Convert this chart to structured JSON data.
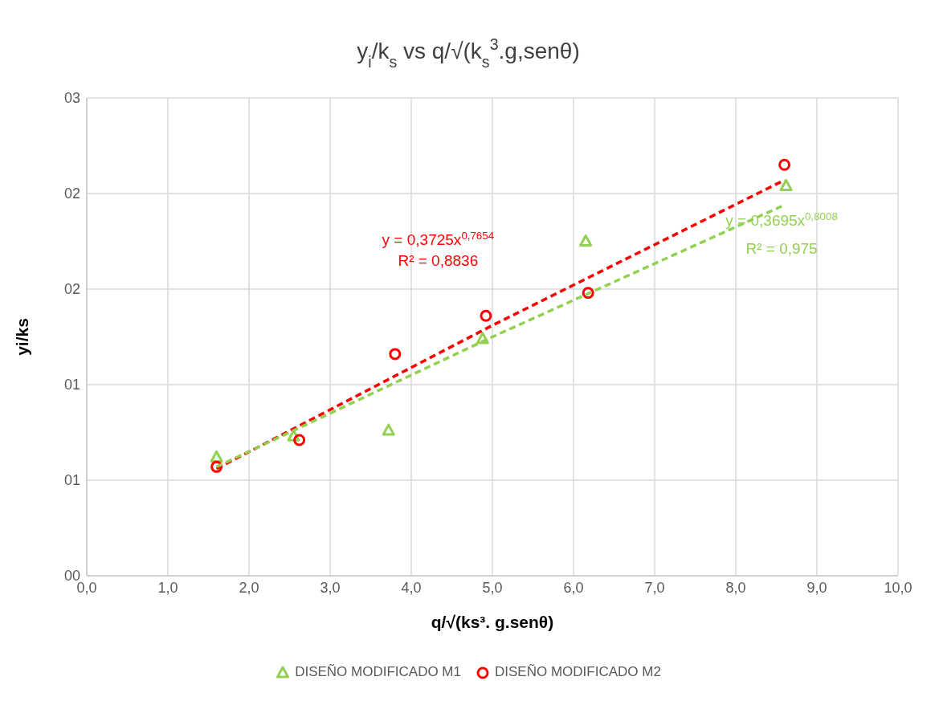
{
  "chart_data": {
    "type": "scatter",
    "title": "y$_{i}$/k$_{s}$   vs   q/√(k$_{s}$$^{3}$.g,senθ)",
    "xlabel": "q/√(ks³. g.senθ)",
    "ylabel": "yi/ks",
    "xlim": [
      0,
      10
    ],
    "xticks": [
      {
        "value": 0,
        "label": "0,0"
      },
      {
        "value": 1,
        "label": "1,0"
      },
      {
        "value": 2,
        "label": "2,0"
      },
      {
        "value": 3,
        "label": "3,0"
      },
      {
        "value": 4,
        "label": "4,0"
      },
      {
        "value": 5,
        "label": "5,0"
      },
      {
        "value": 6,
        "label": "6,0"
      },
      {
        "value": 7,
        "label": "7,0"
      },
      {
        "value": 8,
        "label": "8,0"
      },
      {
        "value": 9,
        "label": "9,0"
      },
      {
        "value": 10,
        "label": "10,0"
      }
    ],
    "ylim": [
      0,
      2.5
    ],
    "yticks": [
      {
        "value": 0,
        "label": "00"
      },
      {
        "value": 0.5,
        "label": "01"
      },
      {
        "value": 1,
        "label": "01"
      },
      {
        "value": 1.5,
        "label": "02"
      },
      {
        "value": 2,
        "label": "02"
      },
      {
        "value": 2.5,
        "label": "03"
      }
    ],
    "grid": true,
    "legend": "bottom",
    "series": [
      {
        "name": "DISEÑO MODIFICADO M1",
        "color": "#92d050",
        "marker": "triangle",
        "x": [
          1.6,
          2.55,
          3.72,
          4.88,
          6.15,
          8.62
        ],
        "values": [
          0.62,
          0.73,
          0.76,
          1.24,
          1.75,
          2.04
        ]
      },
      {
        "name": "DISEÑO MODIFICADO M2",
        "color": "#ff0000",
        "marker": "circle",
        "x": [
          1.6,
          2.62,
          3.8,
          4.92,
          6.18,
          8.6
        ],
        "values": [
          0.57,
          0.71,
          1.16,
          1.36,
          1.48,
          2.15
        ]
      },
      {
        "type": "line",
        "color": "#ff0000",
        "line_style": "dashed",
        "marker": "none",
        "x": [
          1.6,
          5.0,
          8.6
        ],
        "values": [
          0.56,
          1.31,
          2.07
        ]
      },
      {
        "type": "line",
        "color": "#92d050",
        "line_style": "dashed",
        "marker": "none",
        "x": [
          1.6,
          5.0,
          8.6
        ],
        "values": [
          0.57,
          1.25,
          1.94
        ]
      }
    ],
    "annotations": [
      "y = 0,3725x$^{0,7654}$",
      "R² = 0,8836",
      "y = 0,3695x$^{0,8008}$",
      "R² = 0,975"
    ]
  }
}
